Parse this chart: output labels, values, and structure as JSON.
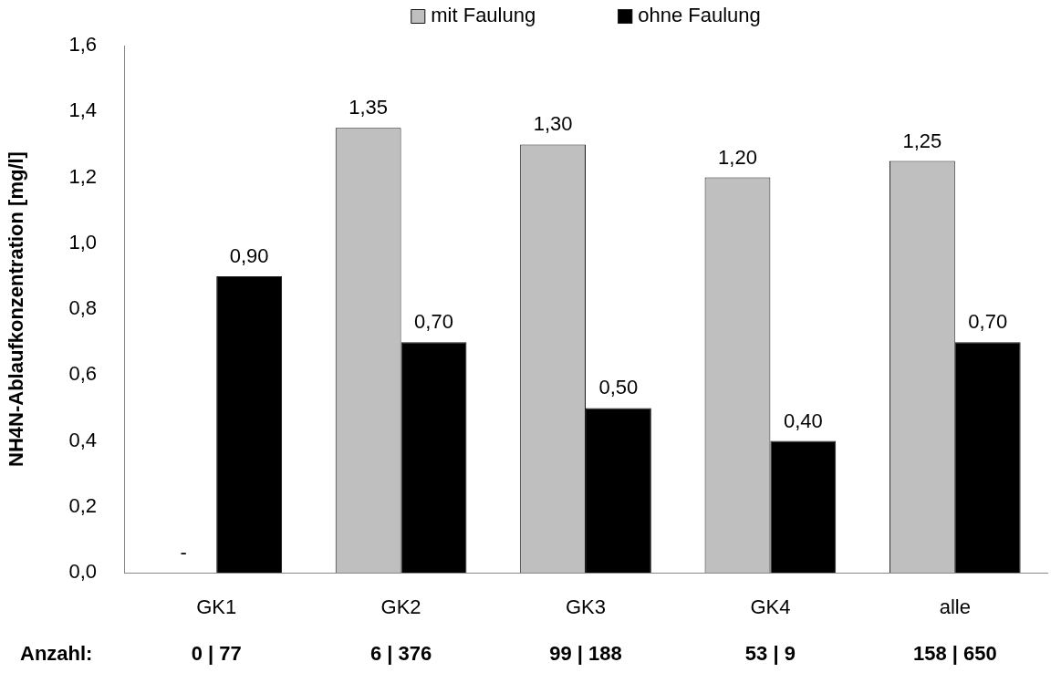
{
  "chart_data": {
    "type": "bar",
    "ylabel": "NH4N-Ablaufkonzentration [mg/l]",
    "categories": [
      "GK1",
      "GK2",
      "GK3",
      "GK4",
      "alle"
    ],
    "series": [
      {
        "name": "mit Faulung",
        "color": "#bfbfbf",
        "values": [
          null,
          1.35,
          1.3,
          1.2,
          1.25
        ],
        "value_labels": [
          "-",
          "1,35",
          "1,30",
          "1,20",
          "1,25"
        ]
      },
      {
        "name": "ohne Faulung",
        "color": "#000000",
        "values": [
          0.9,
          0.7,
          0.5,
          0.4,
          0.7
        ],
        "value_labels": [
          "0,90",
          "0,70",
          "0,50",
          "0,40",
          "0,70"
        ]
      }
    ],
    "ylim": [
      0,
      1.6
    ],
    "yticks": [
      {
        "value": 0,
        "label": "0,0"
      },
      {
        "value": 0.2,
        "label": "0,2"
      },
      {
        "value": 0.4,
        "label": "0,4"
      },
      {
        "value": 0.6,
        "label": "0,6"
      },
      {
        "value": 0.8,
        "label": "0,8"
      },
      {
        "value": 1.0,
        "label": "1,0"
      },
      {
        "value": 1.2,
        "label": "1,2"
      },
      {
        "value": 1.4,
        "label": "1,4"
      },
      {
        "value": 1.6,
        "label": "1,6"
      }
    ],
    "legend": "top",
    "annotations": [
      "Anzahl:",
      "0 | 77",
      "6 | 376",
      "99 | 188",
      "53 | 9",
      "158 | 650"
    ]
  }
}
